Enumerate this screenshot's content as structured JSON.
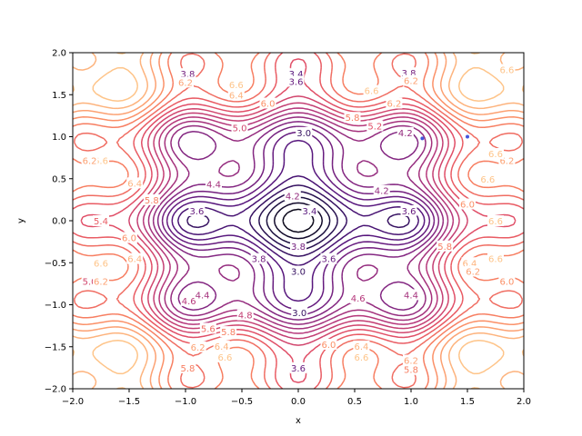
{
  "chart_data": {
    "type": "contour",
    "title": "",
    "xlabel": "x",
    "ylabel": "y",
    "xlim": [
      -2.0,
      2.0
    ],
    "ylim": [
      -2.0,
      2.0
    ],
    "x_ticks": [
      "−2.0",
      "−1.5",
      "−1.0",
      "−0.5",
      "0.0",
      "0.5",
      "1.0",
      "1.5",
      "2.0"
    ],
    "y_ticks": [
      "−2.0",
      "−1.5",
      "−1.0",
      "−0.5",
      "0.0",
      "0.5",
      "1.0",
      "1.5",
      "2.0"
    ],
    "colormap": "magma",
    "grid": false,
    "contour_levels": [
      2.0,
      2.2,
      2.4,
      2.6,
      2.8,
      3.0,
      3.2,
      3.4,
      3.6,
      3.8,
      4.0,
      4.2,
      4.4,
      4.6,
      4.8,
      5.0,
      5.2,
      5.4,
      5.6,
      5.8,
      6.0,
      6.2,
      6.4,
      6.6,
      6.8,
      7.0,
      7.2
    ],
    "contour_labels": [
      {
        "text": "3.8",
        "x": -0.98,
        "y": 1.75
      },
      {
        "text": "6.2",
        "x": -1.0,
        "y": 1.65
      },
      {
        "text": "6.6",
        "x": -0.55,
        "y": 1.62
      },
      {
        "text": "6.4",
        "x": -0.55,
        "y": 1.5
      },
      {
        "text": "6.0",
        "x": -0.27,
        "y": 1.4
      },
      {
        "text": "5.0",
        "x": -0.52,
        "y": 1.11
      },
      {
        "text": "3.4",
        "x": -0.02,
        "y": 1.75
      },
      {
        "text": "3.6",
        "x": -0.02,
        "y": 1.66
      },
      {
        "text": "3.0",
        "x": 0.05,
        "y": 1.05
      },
      {
        "text": "3.8",
        "x": 0.98,
        "y": 1.76
      },
      {
        "text": "6.2",
        "x": 1.0,
        "y": 1.67
      },
      {
        "text": "6.6",
        "x": 0.65,
        "y": 1.55
      },
      {
        "text": "6.2",
        "x": 0.85,
        "y": 1.4
      },
      {
        "text": "5.8",
        "x": 0.48,
        "y": 1.23
      },
      {
        "text": "5.2",
        "x": 0.68,
        "y": 1.13
      },
      {
        "text": "4.2",
        "x": 0.95,
        "y": 1.05
      },
      {
        "text": "4.2",
        "x": 0.74,
        "y": 0.36
      },
      {
        "text": "3.6",
        "x": -0.9,
        "y": 0.12
      },
      {
        "text": "4.4",
        "x": -0.75,
        "y": 0.44
      },
      {
        "text": "3.6",
        "x": 0.98,
        "y": 0.12
      },
      {
        "text": "4.2",
        "x": -0.05,
        "y": 0.3
      },
      {
        "text": "3.4",
        "x": 0.1,
        "y": 0.12
      },
      {
        "text": "3.8",
        "x": -0.35,
        "y": -0.45
      },
      {
        "text": "3.6",
        "x": 0.27,
        "y": -0.45
      },
      {
        "text": "3.0",
        "x": 0.0,
        "y": -0.6
      },
      {
        "text": "3.8",
        "x": 0.0,
        "y": -0.3
      },
      {
        "text": "4.6",
        "x": -0.97,
        "y": -0.95
      },
      {
        "text": "4.4",
        "x": -0.85,
        "y": -0.88
      },
      {
        "text": "4.6",
        "x": 0.53,
        "y": -0.92
      },
      {
        "text": "4.4",
        "x": 1.0,
        "y": -0.88
      },
      {
        "text": "4.8",
        "x": -0.47,
        "y": -1.12
      },
      {
        "text": "3.0",
        "x": 0.01,
        "y": -1.09
      },
      {
        "text": "5.8",
        "x": -0.62,
        "y": -1.32
      },
      {
        "text": "5.6",
        "x": -0.8,
        "y": -1.28
      },
      {
        "text": "6.2",
        "x": -0.89,
        "y": -1.5
      },
      {
        "text": "6.4",
        "x": -0.68,
        "y": -1.49
      },
      {
        "text": "6.6",
        "x": -0.65,
        "y": -1.62
      },
      {
        "text": "5.8",
        "x": -0.98,
        "y": -1.75
      },
      {
        "text": "6.0",
        "x": 0.27,
        "y": -1.47
      },
      {
        "text": "3.6",
        "x": 0.0,
        "y": -1.75
      },
      {
        "text": "6.4",
        "x": 0.56,
        "y": -1.49
      },
      {
        "text": "6.6",
        "x": 0.56,
        "y": -1.62
      },
      {
        "text": "6.2",
        "x": 1.0,
        "y": -1.66
      },
      {
        "text": "5.8",
        "x": 1.0,
        "y": -1.77
      },
      {
        "text": "6.6",
        "x": 1.85,
        "y": 1.8
      },
      {
        "text": "6.6",
        "x": -1.75,
        "y": 0.72
      },
      {
        "text": "6.2",
        "x": -1.85,
        "y": 0.72
      },
      {
        "text": "6.4",
        "x": -1.45,
        "y": 0.45
      },
      {
        "text": "5.8",
        "x": -1.3,
        "y": 0.25
      },
      {
        "text": "5.4",
        "x": -1.75,
        "y": 0.0
      },
      {
        "text": "6.0",
        "x": -1.5,
        "y": -0.2
      },
      {
        "text": "6.6",
        "x": -1.75,
        "y": -0.5
      },
      {
        "text": "6.4",
        "x": -1.45,
        "y": -0.45
      },
      {
        "text": "5.0",
        "x": -1.85,
        "y": -0.72
      },
      {
        "text": "6.2",
        "x": -1.75,
        "y": -0.72
      },
      {
        "text": "6.6",
        "x": 1.68,
        "y": 0.5
      },
      {
        "text": "6.0",
        "x": 1.5,
        "y": 0.2
      },
      {
        "text": "6.6",
        "x": 1.75,
        "y": 0.0
      },
      {
        "text": "5.8",
        "x": 1.3,
        "y": -0.3
      },
      {
        "text": "6.4",
        "x": 1.52,
        "y": -0.5
      },
      {
        "text": "6.2",
        "x": 1.55,
        "y": -0.6
      },
      {
        "text": "6.6",
        "x": 1.75,
        "y": -0.45
      },
      {
        "text": "6.0",
        "x": 1.85,
        "y": -0.72
      },
      {
        "text": "6.2",
        "x": 1.85,
        "y": 0.72
      },
      {
        "text": "6.6",
        "x": 1.75,
        "y": 0.8
      }
    ],
    "markers": [
      {
        "x": 1.1,
        "y": 0.98,
        "color": "#4455dd"
      },
      {
        "x": 1.5,
        "y": 1.0,
        "color": "#4455dd"
      }
    ]
  }
}
